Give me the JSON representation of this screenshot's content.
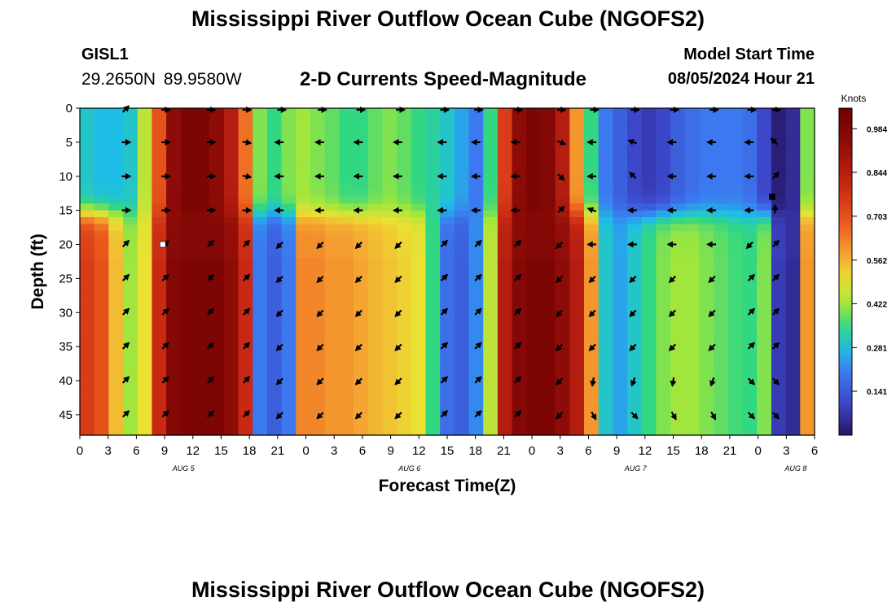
{
  "page": {
    "title": "Mississippi River Outflow Ocean Cube (NGOFS2)",
    "title_bottom": "Mississippi River Outflow Ocean Cube (NGOFS2)",
    "station": "GISL1",
    "coordinates": "29.2650N  89.9580W",
    "subtitle": "2-D Currents Speed-Magnitude",
    "model_start_label": "Model Start Time",
    "model_start_value": "08/05/2024 Hour 21"
  },
  "chart_data": {
    "type": "heatmap",
    "title": "2-D Currents Speed-Magnitude",
    "xlabel": "Forecast Time(Z)",
    "ylabel": "Depth (ft)",
    "units": "Knots",
    "x_range_hours": [
      0,
      78
    ],
    "x_tick_labels": [
      "0",
      "3",
      "6",
      "9",
      "12",
      "15",
      "18",
      "21",
      "0",
      "3",
      "6",
      "9",
      "12",
      "15",
      "18",
      "21",
      "0",
      "3",
      "6",
      "9",
      "12",
      "15",
      "18",
      "21",
      "0",
      "3",
      "6"
    ],
    "day_labels": [
      {
        "text": "AUG 5",
        "hour": 11
      },
      {
        "text": "AUG 6",
        "hour": 35
      },
      {
        "text": "AUG 7",
        "hour": 59
      },
      {
        "text": "AUG 8",
        "hour": 76
      }
    ],
    "y_range_ft": [
      0,
      48
    ],
    "y_ticks": [
      0,
      5,
      10,
      15,
      20,
      25,
      30,
      35,
      40,
      45
    ],
    "colorbar_ticks": [
      "0.984",
      "0.844",
      "0.703",
      "0.562",
      "0.422",
      "0.281",
      "0.141"
    ],
    "colorbar_range": [
      0.0,
      1.05
    ],
    "interface_depth_ft": 15.5,
    "surface_layer_speed_knots": [
      0.3,
      0.28,
      0.28,
      0.3,
      0.45,
      0.7,
      0.95,
      1.0,
      1.0,
      0.95,
      0.85,
      0.65,
      0.4,
      0.35,
      0.4,
      0.42,
      0.4,
      0.38,
      0.35,
      0.35,
      0.38,
      0.4,
      0.38,
      0.35,
      0.33,
      0.3,
      0.25,
      0.2,
      0.35,
      0.75,
      0.95,
      1.0,
      0.98,
      0.85,
      0.6,
      0.35,
      0.2,
      0.15,
      0.1,
      0.08,
      0.1,
      0.15,
      0.18,
      0.2,
      0.2,
      0.2,
      0.18,
      0.1,
      0.02,
      0.05,
      0.4
    ],
    "bottom_layer_speed_knots": [
      0.75,
      0.7,
      0.55,
      0.42,
      0.5,
      0.8,
      0.98,
      1.0,
      1.0,
      1.0,
      0.95,
      0.8,
      0.2,
      0.15,
      0.2,
      0.62,
      0.62,
      0.6,
      0.6,
      0.58,
      0.56,
      0.54,
      0.52,
      0.5,
      0.35,
      0.18,
      0.15,
      0.22,
      0.45,
      0.85,
      0.98,
      1.0,
      1.0,
      0.95,
      0.85,
      0.6,
      0.3,
      0.25,
      0.3,
      0.35,
      0.4,
      0.42,
      0.42,
      0.4,
      0.38,
      0.36,
      0.35,
      0.4,
      0.08,
      0.05,
      0.6
    ],
    "arrow_times_hours": [
      4.8,
      9,
      13.8,
      17.6,
      21.3,
      25.6,
      29.7,
      33.9,
      38.6,
      42.2,
      46.4,
      51,
      54.5,
      58.8,
      63,
      67.2,
      71.2,
      73.8
    ],
    "arrow_depths_ft": [
      0,
      5,
      10,
      15,
      20,
      25,
      30,
      35,
      40,
      45
    ],
    "arrow_directions_deg": [
      [
        315,
        0,
        0,
        0,
        0,
        0,
        0,
        0,
        0,
        0,
        0,
        0,
        0,
        0,
        0,
        0,
        0,
        0
      ],
      [
        0,
        0,
        0,
        10,
        180,
        180,
        180,
        180,
        180,
        180,
        180,
        20,
        180,
        200,
        180,
        180,
        180,
        225
      ],
      [
        0,
        0,
        0,
        10,
        180,
        180,
        180,
        180,
        180,
        180,
        180,
        45,
        180,
        225,
        180,
        180,
        180,
        315
      ],
      [
        0,
        0,
        0,
        0,
        180,
        180,
        180,
        180,
        180,
        180,
        180,
        315,
        200,
        180,
        180,
        180,
        180,
        270
      ],
      [
        315,
        315,
        315,
        315,
        135,
        135,
        135,
        135,
        315,
        315,
        315,
        135,
        180,
        180,
        180,
        180,
        135,
        315
      ],
      [
        315,
        315,
        315,
        315,
        135,
        135,
        135,
        135,
        315,
        315,
        315,
        135,
        135,
        135,
        135,
        135,
        315,
        315
      ],
      [
        315,
        315,
        315,
        315,
        135,
        135,
        135,
        135,
        315,
        315,
        315,
        135,
        135,
        135,
        135,
        135,
        315,
        315
      ],
      [
        315,
        315,
        315,
        315,
        135,
        135,
        135,
        135,
        315,
        315,
        315,
        135,
        135,
        135,
        135,
        135,
        315,
        315
      ],
      [
        315,
        315,
        315,
        315,
        135,
        135,
        135,
        135,
        315,
        315,
        315,
        135,
        100,
        110,
        100,
        110,
        45,
        45
      ],
      [
        315,
        315,
        315,
        315,
        135,
        135,
        135,
        135,
        315,
        315,
        315,
        135,
        60,
        45,
        60,
        60,
        45,
        45
      ]
    ],
    "markers": [
      {
        "hour": 8.8,
        "depth": 20,
        "color": "#ffffff"
      },
      {
        "hour": 73.5,
        "depth": 13,
        "color": "#000000"
      }
    ]
  }
}
